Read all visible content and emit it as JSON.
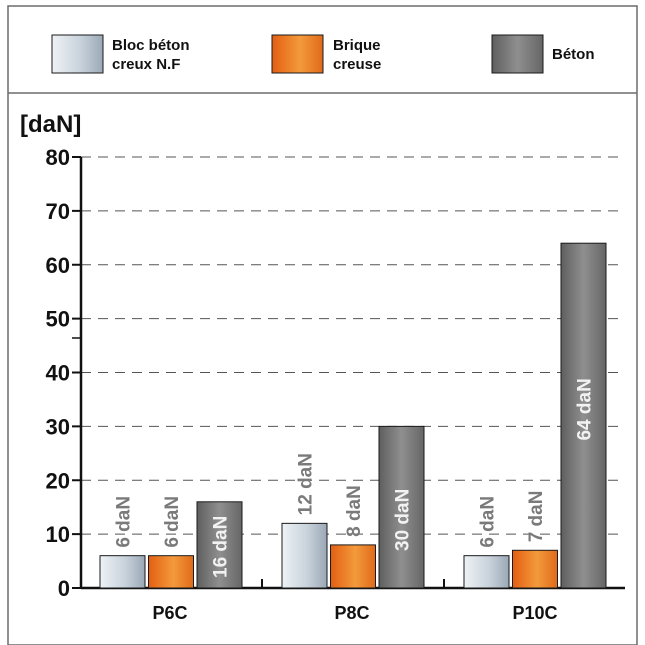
{
  "chart_data": {
    "type": "bar",
    "ylabel": "[daN]",
    "ylim": [
      0,
      80
    ],
    "yticks": [
      0,
      10,
      20,
      30,
      40,
      50,
      60,
      70,
      80
    ],
    "grid": "horizontal-dashed",
    "legend_position": "top",
    "categories": [
      "P6C",
      "P8C",
      "P10C"
    ],
    "series": [
      {
        "name": "Bloc béton creux N.F",
        "name_lines": [
          "Bloc béton",
          "creux N.F"
        ],
        "color": "#c9d3dc",
        "values": [
          6,
          12,
          6
        ],
        "labels": [
          "6 daN",
          "12 daN",
          "6 daN"
        ]
      },
      {
        "name": "Brique creuse",
        "name_lines": [
          "Brique",
          "creuse"
        ],
        "color": "#f08a2a",
        "values": [
          6,
          8,
          7
        ],
        "labels": [
          "6 daN",
          "8 daN",
          "7 daN"
        ]
      },
      {
        "name": "Béton",
        "name_lines": [
          "Béton"
        ],
        "color": "#7d7d7d",
        "values": [
          16,
          30,
          64
        ],
        "labels": [
          "16 daN",
          "30 daN",
          "64 daN"
        ]
      }
    ]
  }
}
